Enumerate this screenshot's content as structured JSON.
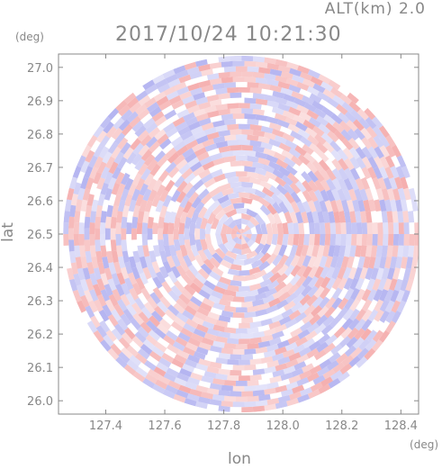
{
  "header": {
    "altitude_label": "ALT(km) 2.0",
    "timestamp": "2017/10/24 10:21:30"
  },
  "chart_data": {
    "type": "heatmap",
    "title": "2017/10/24 10:21:30",
    "xlabel": "lon",
    "ylabel": "lat",
    "x_unit": "(deg)",
    "y_unit": "(deg)",
    "xlim": [
      127.24,
      128.46
    ],
    "ylim": [
      25.96,
      27.04
    ],
    "x_ticks": [
      127.4,
      127.6,
      127.8,
      128.0,
      128.2,
      128.4
    ],
    "x_tick_labels": [
      "127.4",
      "127.6",
      "127.8",
      "128.0",
      "128.2",
      "128.4"
    ],
    "y_ticks": [
      26.0,
      26.1,
      26.2,
      26.3,
      26.4,
      26.5,
      26.6,
      26.7,
      26.8,
      26.9,
      27.0
    ],
    "y_tick_labels": [
      "26.0",
      "26.1",
      "26.2",
      "26.3",
      "26.4",
      "26.5",
      "26.6",
      "26.7",
      "26.8",
      "26.9",
      "27.0"
    ],
    "radar_center": {
      "lon": 127.86,
      "lat": 26.5
    },
    "radar_range_deg_lat": 0.535,
    "colors": {
      "positive": "#f3a0a0",
      "negative": "#a8a8ee",
      "axis": "#888888"
    },
    "grid": false,
    "legend": "none"
  }
}
